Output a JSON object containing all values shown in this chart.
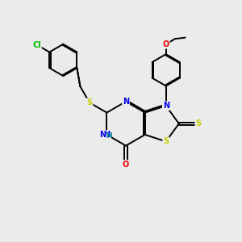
{
  "bg_color": "#ebebeb",
  "atom_colors": {
    "C": "#000000",
    "N": "#0000ee",
    "S": "#cccc00",
    "O": "#ee0000",
    "Cl": "#00bb00",
    "H": "#008888"
  },
  "bond_color": "#000000",
  "bond_width": 1.4,
  "dbo": 0.055,
  "bl": 1.0
}
